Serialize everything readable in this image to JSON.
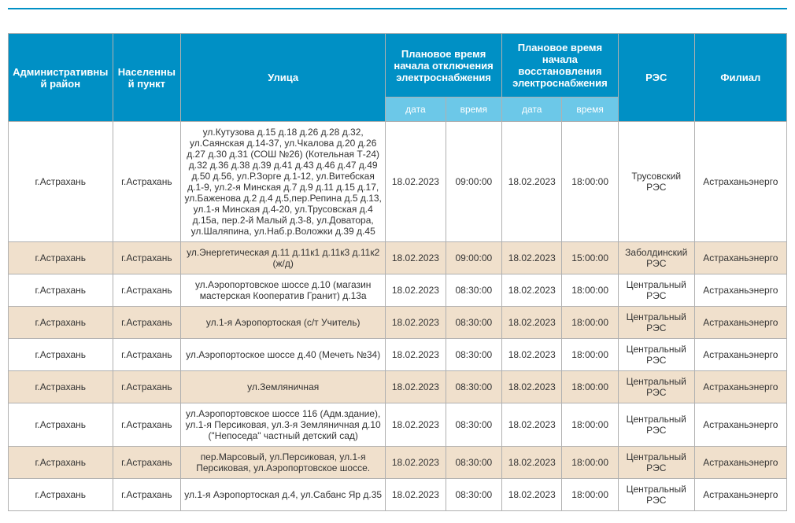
{
  "headers": {
    "district": "Административный район",
    "city": "Населенный пункт",
    "street": "Улица",
    "off": "Плановое время начала отключения электроснабжения",
    "on": "Плановое время начала восстановления электроснабжения",
    "res": "РЭС",
    "branch": "Филиал",
    "date": "дата",
    "time": "время"
  },
  "rows": [
    {
      "district": "г.Астрахань",
      "city": "г.Астрахань",
      "street": "ул.Кутузова д.15 д.18 д.26 д.28 д.32, ул.Саянская д.14-37, ул.Чкалова д.20 д.26 д.27 д.30 д.31 (СОШ №26) (Котельная Т-24) д.32 д.36 д.38 д.39 д.41 д.43 д.46 д.47 д.49 д.50 д.56, ул.Р.Зорге д.1-12, ул.Витебская д.1-9, ул.2-я Минская д.7 д.9 д.11 д.15 д.17, ул.Баженова д.2 д.4 д.5,пер.Репина д.5 д.13, ул.1-я Минская д.4-20, ул.Трусовская д.4 д.15а, пер.2-й Малый д.3-8, ул.Доватора, ул.Шаляпина, ул.Наб.р.Воложки д.39 д.45",
      "off_date": "18.02.2023",
      "off_time": "09:00:00",
      "on_date": "18.02.2023",
      "on_time": "18:00:00",
      "res": "Трусовский РЭС",
      "branch": "Астраханьэнерго"
    },
    {
      "district": "г.Астрахань",
      "city": "г.Астрахань",
      "street": "ул.Энергетическая д.11 д.11к1 д.11к3 д.11к2 (ж/д)",
      "off_date": "18.02.2023",
      "off_time": "09:00:00",
      "on_date": "18.02.2023",
      "on_time": "15:00:00",
      "res": "Заболдинский РЭС",
      "branch": "Астраханьэнерго"
    },
    {
      "district": "г.Астрахань",
      "city": "г.Астрахань",
      "street": "ул.Аэропортовское шоссе д.10 (магазин мастерская Кооператив Гранит) д.13а",
      "off_date": "18.02.2023",
      "off_time": "08:30:00",
      "on_date": "18.02.2023",
      "on_time": "18:00:00",
      "res": "Центральный РЭС",
      "branch": "Астраханьэнерго"
    },
    {
      "district": "г.Астрахань",
      "city": "г.Астрахань",
      "street": "ул.1-я Аэропортоская (с/т Учитель)",
      "off_date": "18.02.2023",
      "off_time": "08:30:00",
      "on_date": "18.02.2023",
      "on_time": "18:00:00",
      "res": "Центральный РЭС",
      "branch": "Астраханьэнерго"
    },
    {
      "district": "г.Астрахань",
      "city": "г.Астрахань",
      "street": "ул.Аэропортоское шоссе д.40 (Мечеть №34)",
      "off_date": "18.02.2023",
      "off_time": "08:30:00",
      "on_date": "18.02.2023",
      "on_time": "18:00:00",
      "res": "Центральный РЭС",
      "branch": "Астраханьэнерго"
    },
    {
      "district": "г.Астрахань",
      "city": "г.Астрахань",
      "street": "ул.Земляничная",
      "off_date": "18.02.2023",
      "off_time": "08:30:00",
      "on_date": "18.02.2023",
      "on_time": "18:00:00",
      "res": "Центральный РЭС",
      "branch": "Астраханьэнерго"
    },
    {
      "district": "г.Астрахань",
      "city": "г.Астрахань",
      "street": "ул.Аэропортовское шоссе 116 (Адм.здание), ул.1-я Персиковая, ул.3-я Земляничная д.10 (\"Непоседа\" частный детский сад)",
      "off_date": "18.02.2023",
      "off_time": "08:30:00",
      "on_date": "18.02.2023",
      "on_time": "18:00:00",
      "res": "Центральный РЭС",
      "branch": "Астраханьэнерго"
    },
    {
      "district": "г.Астрахань",
      "city": "г.Астрахань",
      "street": "пер.Марсовый, ул.Персиковая, ул.1-я Персиковая, ул.Аэропортовское шоссе.",
      "off_date": "18.02.2023",
      "off_time": "08:30:00",
      "on_date": "18.02.2023",
      "on_time": "18:00:00",
      "res": "Центральный РЭС",
      "branch": "Астраханьэнерго"
    },
    {
      "district": "г.Астрахань",
      "city": "г.Астрахань",
      "street": "ул.1-я Аэропортоская д.4, ул.Сабанс Яр д.35",
      "off_date": "18.02.2023",
      "off_time": "08:30:00",
      "on_date": "18.02.2023",
      "on_time": "18:00:00",
      "res": "Центральный РЭС",
      "branch": "Астраханьэнерго"
    }
  ]
}
